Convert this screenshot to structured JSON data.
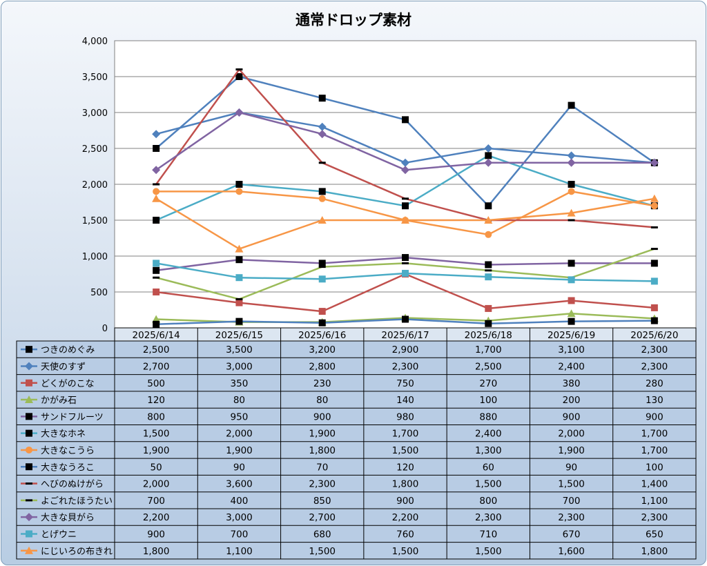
{
  "chart_data": {
    "type": "line",
    "title": "通常ドロップ素材",
    "xlabel": "",
    "ylabel": "",
    "ylim": [
      0,
      4000
    ],
    "yticks": [
      0,
      500,
      1000,
      1500,
      2000,
      2500,
      3000,
      3500,
      4000
    ],
    "yticks_labels": [
      "0",
      "500",
      "1,000",
      "1,500",
      "2,000",
      "2,500",
      "3,000",
      "3,500",
      "4,000"
    ],
    "grid": true,
    "legend": "data-table",
    "categories": [
      "2025/6/14",
      "2025/6/15",
      "2025/6/16",
      "2025/6/17",
      "2025/6/18",
      "2025/6/19",
      "2025/6/20"
    ],
    "series": [
      {
        "name": "つきのめぐみ",
        "color": "#4f81bd",
        "marker": "square-black",
        "values": [
          2500,
          3500,
          3200,
          2900,
          1700,
          3100,
          2300
        ],
        "labels": [
          "2,500",
          "3,500",
          "3,200",
          "2,900",
          "1,700",
          "3,100",
          "2,300"
        ]
      },
      {
        "name": "天使のすず",
        "color": "#4f81bd",
        "marker": "diamond",
        "values": [
          2700,
          3000,
          2800,
          2300,
          2500,
          2400,
          2300
        ],
        "labels": [
          "2,700",
          "3,000",
          "2,800",
          "2,300",
          "2,500",
          "2,400",
          "2,300"
        ]
      },
      {
        "name": "どくがのこな",
        "color": "#c0504d",
        "marker": "square",
        "values": [
          500,
          350,
          230,
          750,
          270,
          380,
          280
        ],
        "labels": [
          "500",
          "350",
          "230",
          "750",
          "270",
          "380",
          "280"
        ]
      },
      {
        "name": "かがみ石",
        "color": "#9bbb59",
        "marker": "triangle",
        "values": [
          120,
          80,
          80,
          140,
          100,
          200,
          130
        ],
        "labels": [
          "120",
          "80",
          "80",
          "140",
          "100",
          "200",
          "130"
        ]
      },
      {
        "name": "サンドフルーツ",
        "color": "#8064a2",
        "marker": "square-black",
        "values": [
          800,
          950,
          900,
          980,
          880,
          900,
          900
        ],
        "labels": [
          "800",
          "950",
          "900",
          "980",
          "880",
          "900",
          "900"
        ]
      },
      {
        "name": "大きなホネ",
        "color": "#4bacc6",
        "marker": "square-black",
        "values": [
          1500,
          2000,
          1900,
          1700,
          2400,
          2000,
          1700
        ],
        "labels": [
          "1,500",
          "2,000",
          "1,900",
          "1,700",
          "2,400",
          "2,000",
          "1,700"
        ]
      },
      {
        "name": "大きなこうら",
        "color": "#f79646",
        "marker": "circle",
        "values": [
          1900,
          1900,
          1800,
          1500,
          1300,
          1900,
          1700
        ],
        "labels": [
          "1,900",
          "1,900",
          "1,800",
          "1,500",
          "1,300",
          "1,900",
          "1,700"
        ]
      },
      {
        "name": "大きなうろこ",
        "color": "#4f81bd",
        "marker": "square-black",
        "values": [
          50,
          90,
          70,
          120,
          60,
          90,
          100
        ],
        "labels": [
          "50",
          "90",
          "70",
          "120",
          "60",
          "90",
          "100"
        ]
      },
      {
        "name": "へびのぬけがら",
        "color": "#c0504d",
        "marker": "dash-black",
        "values": [
          2000,
          3600,
          2300,
          1800,
          1500,
          1500,
          1400
        ],
        "labels": [
          "2,000",
          "3,600",
          "2,300",
          "1,800",
          "1,500",
          "1,500",
          "1,400"
        ]
      },
      {
        "name": "よごれたほうたい",
        "color": "#9bbb59",
        "marker": "dash-black",
        "values": [
          700,
          400,
          850,
          900,
          800,
          700,
          1100
        ],
        "labels": [
          "700",
          "400",
          "850",
          "900",
          "800",
          "700",
          "1,100"
        ]
      },
      {
        "name": "大きな貝がら",
        "color": "#8064a2",
        "marker": "diamond",
        "values": [
          2200,
          3000,
          2700,
          2200,
          2300,
          2300,
          2300
        ],
        "labels": [
          "2,200",
          "3,000",
          "2,700",
          "2,200",
          "2,300",
          "2,300",
          "2,300"
        ]
      },
      {
        "name": "とげウニ",
        "color": "#4bacc6",
        "marker": "square",
        "values": [
          900,
          700,
          680,
          760,
          710,
          670,
          650
        ],
        "labels": [
          "900",
          "700",
          "680",
          "760",
          "710",
          "670",
          "650"
        ]
      },
      {
        "name": "にじいろの布きれ",
        "color": "#f79646",
        "marker": "triangle",
        "values": [
          1800,
          1100,
          1500,
          1500,
          1500,
          1600,
          1800
        ],
        "labels": [
          "1,800",
          "1,100",
          "1,500",
          "1,500",
          "1,500",
          "1,600",
          "1,800"
        ]
      }
    ]
  }
}
